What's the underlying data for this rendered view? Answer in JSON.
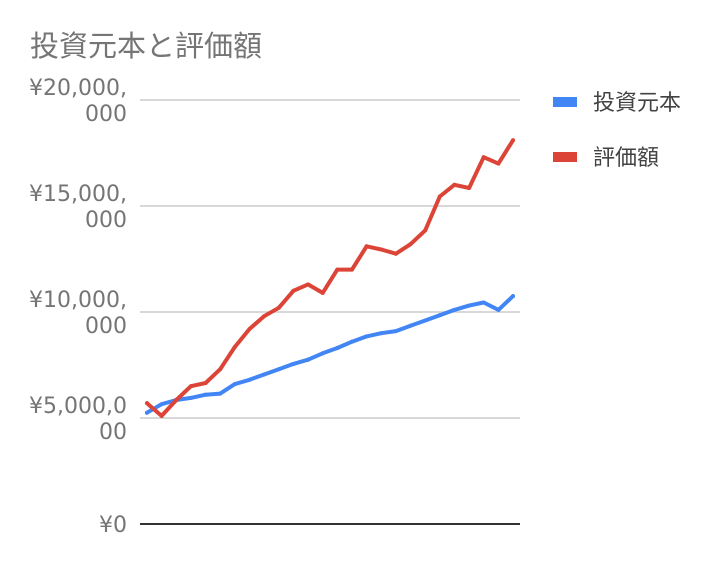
{
  "chart_data": {
    "type": "line",
    "title": "投資元本と評価額",
    "ylim": [
      0,
      20000000
    ],
    "y_ticks": [
      {
        "value": 0,
        "lines": [
          "¥0"
        ]
      },
      {
        "value": 5000000,
        "lines": [
          "¥5,000,0",
          "00"
        ]
      },
      {
        "value": 10000000,
        "lines": [
          "¥10,000,",
          "000"
        ]
      },
      {
        "value": 15000000,
        "lines": [
          "¥15,000,",
          "000"
        ]
      },
      {
        "value": 20000000,
        "lines": [
          "¥20,000,",
          "000"
        ]
      }
    ],
    "grid": true,
    "legend_position": "right",
    "series": [
      {
        "name": "投資元本",
        "color": "#4285f4",
        "values": [
          5250000,
          5650000,
          5850000,
          5950000,
          6100000,
          6150000,
          6600000,
          6800000,
          7050000,
          7300000,
          7550000,
          7750000,
          8050000,
          8300000,
          8600000,
          8850000,
          9000000,
          9100000,
          9350000,
          9600000,
          9850000,
          10100000,
          10300000,
          10450000,
          10100000,
          10750000
        ]
      },
      {
        "name": "評価額",
        "color": "#db4437",
        "values": [
          5700000,
          5100000,
          5850000,
          6500000,
          6650000,
          7300000,
          8350000,
          9200000,
          9800000,
          10200000,
          11000000,
          11300000,
          10900000,
          12000000,
          12000000,
          13100000,
          12950000,
          12750000,
          13200000,
          13850000,
          15450000,
          16000000,
          15850000,
          17300000,
          17000000,
          18100000
        ]
      }
    ]
  }
}
